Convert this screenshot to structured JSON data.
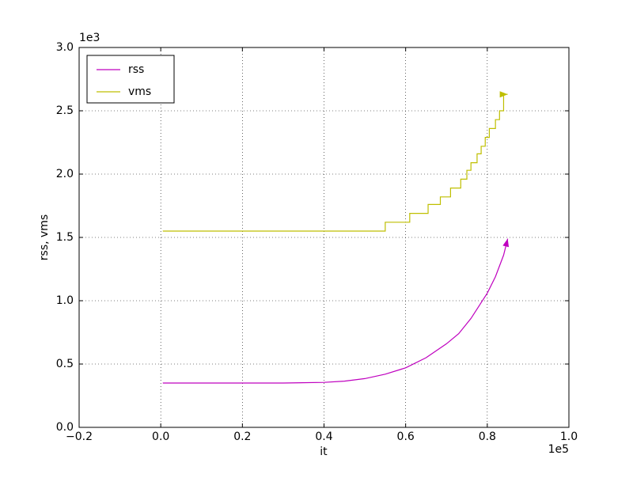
{
  "chart_data": {
    "type": "line",
    "xlabel": "it",
    "ylabel": "rss, vms",
    "x_offset_label": "1e5",
    "y_offset_label": "1e3",
    "xlim": [
      -0.2,
      1.0
    ],
    "xticks": [
      {
        "value": -0.2,
        "label": "−0.2"
      },
      {
        "value": 0,
        "label": "0.0"
      },
      {
        "value": 0.2,
        "label": "0.2"
      },
      {
        "value": 0.4,
        "label": "0.4"
      },
      {
        "value": 0.6,
        "label": "0.6"
      },
      {
        "value": 0.8,
        "label": "0.8"
      },
      {
        "value": 1,
        "label": "1.0"
      }
    ],
    "ylim": [
      0,
      3.0
    ],
    "yticks": [
      {
        "value": 0,
        "label": "0.0"
      },
      {
        "value": 0.5,
        "label": "0.5"
      },
      {
        "value": 1,
        "label": "1.0"
      },
      {
        "value": 1.5,
        "label": "1.5"
      },
      {
        "value": 2,
        "label": "2.0"
      },
      {
        "value": 2.5,
        "label": "2.5"
      },
      {
        "value": 3,
        "label": "3.0"
      }
    ],
    "grid": true,
    "legend": "upper-left",
    "series": [
      {
        "name": "rss",
        "color": "#bf00bf",
        "x": [
          0.005,
          0.1,
          0.2,
          0.3,
          0.4,
          0.45,
          0.5,
          0.55,
          0.6,
          0.65,
          0.7,
          0.73,
          0.76,
          0.78,
          0.8,
          0.82,
          0.84,
          0.85
        ],
        "values": [
          0.35,
          0.35,
          0.35,
          0.35,
          0.355,
          0.365,
          0.385,
          0.42,
          0.47,
          0.55,
          0.66,
          0.74,
          0.86,
          0.96,
          1.06,
          1.19,
          1.36,
          1.49
        ]
      },
      {
        "name": "vms",
        "color": "#bfbf00",
        "x": [
          0.005,
          0.55,
          0.55,
          0.61,
          0.61,
          0.655,
          0.655,
          0.685,
          0.685,
          0.71,
          0.71,
          0.735,
          0.735,
          0.75,
          0.75,
          0.76,
          0.76,
          0.775,
          0.775,
          0.785,
          0.785,
          0.795,
          0.795,
          0.805,
          0.805,
          0.82,
          0.82,
          0.83,
          0.83,
          0.84,
          0.84,
          0.85
        ],
        "values": [
          1.55,
          1.55,
          1.62,
          1.62,
          1.69,
          1.69,
          1.76,
          1.76,
          1.82,
          1.82,
          1.89,
          1.89,
          1.96,
          1.96,
          2.03,
          2.03,
          2.09,
          2.09,
          2.16,
          2.16,
          2.22,
          2.22,
          2.29,
          2.29,
          2.36,
          2.36,
          2.43,
          2.43,
          2.5,
          2.5,
          2.63,
          2.63
        ]
      }
    ]
  }
}
